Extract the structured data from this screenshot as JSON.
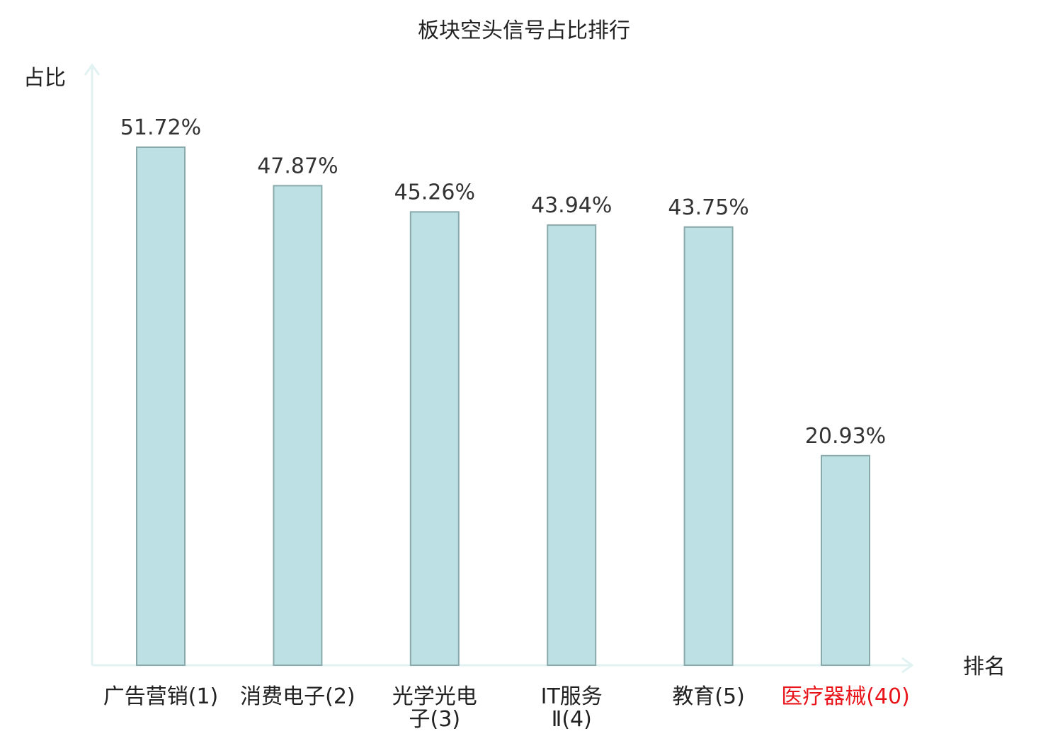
{
  "chart_data": {
    "type": "bar",
    "title": "板块空头信号占比排行",
    "xlabel": "排名",
    "ylabel": "占比",
    "categories": [
      "广告营销(1)",
      "消费电子(2)",
      "光学光电子(3)",
      "IT服务Ⅱ(4)",
      "教育(5)",
      "医疗器械(40)"
    ],
    "category_lines": [
      [
        "广告营销(1)"
      ],
      [
        "消费电子(2)"
      ],
      [
        "光学光电",
        "子(3)"
      ],
      [
        "IT服务",
        "Ⅱ(4)"
      ],
      [
        "教育(5)"
      ],
      [
        "医疗器械(40)"
      ]
    ],
    "values": [
      51.72,
      47.87,
      45.26,
      43.94,
      43.75,
      20.93
    ],
    "value_labels": [
      "51.72%",
      "47.87%",
      "45.26%",
      "43.94%",
      "43.75%",
      "20.93%"
    ],
    "category_colors": [
      "#222222",
      "#222222",
      "#222222",
      "#222222",
      "#222222",
      "#e8141a"
    ],
    "ylim": [
      0,
      56
    ],
    "grid": false,
    "legend": "none",
    "bar_color": "#bce0e3",
    "bar_edge_color": "#8aa9ab",
    "axis_color": "#e0f2f1"
  }
}
